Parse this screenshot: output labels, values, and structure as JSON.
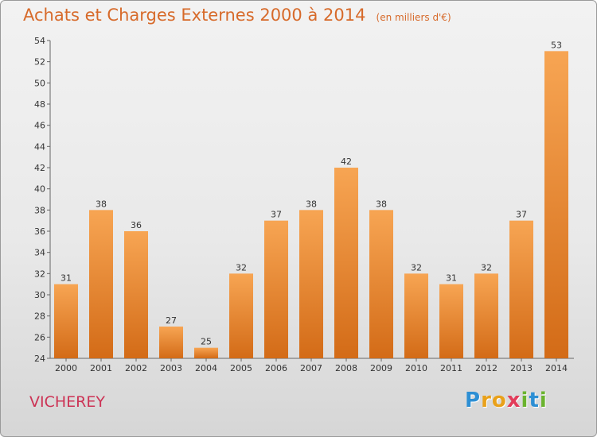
{
  "header": {
    "title": "Achats et Charges Externes 2000 à 2014",
    "unit": "(en milliers d'€)"
  },
  "footer": {
    "place": "VICHEREY",
    "logo_letters": [
      "P",
      "r",
      "o",
      "x",
      "i",
      "t",
      "i"
    ],
    "logo_colors": [
      "#2d8fd4",
      "#e9a11a",
      "#e9a11a",
      "#e23c5a",
      "#6ab32e",
      "#2d8fd4",
      "#6ab32e"
    ]
  },
  "colors": {
    "bar_top": "#f7a553",
    "bar_bottom": "#d36b17",
    "title": "#d76a2a",
    "place": "#cc3355"
  },
  "chart_data": {
    "type": "bar",
    "title": "Achats et Charges Externes 2000 à 2014",
    "subtitle": "(en milliers d'€)",
    "categories": [
      "2000",
      "2001",
      "2002",
      "2003",
      "2004",
      "2005",
      "2006",
      "2007",
      "2008",
      "2009",
      "2010",
      "2011",
      "2012",
      "2013",
      "2014"
    ],
    "values": [
      31,
      38,
      36,
      27,
      25,
      32,
      37,
      38,
      42,
      38,
      32,
      31,
      32,
      37,
      53
    ],
    "ylim": [
      24,
      54
    ],
    "yticks": [
      24,
      26,
      28,
      30,
      32,
      34,
      36,
      38,
      40,
      42,
      44,
      46,
      48,
      50,
      52,
      54
    ],
    "grid": false,
    "xlabel": "",
    "ylabel": ""
  }
}
